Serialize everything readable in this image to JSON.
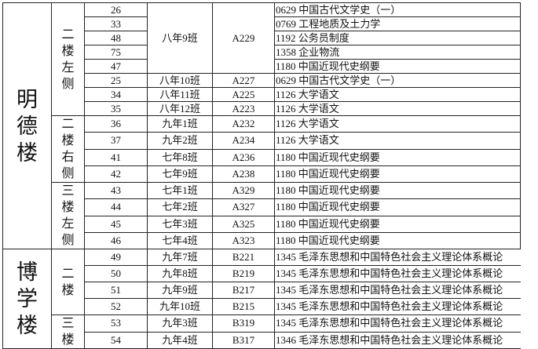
{
  "buildings": [
    {
      "name": "明德楼",
      "floors": [
        {
          "name": "二楼左侧",
          "rows": [
            {
              "seat": "26",
              "course": "0629 中国古代文学史（一）"
            },
            {
              "seat": "33",
              "course": "0769 工程地质及土力学"
            },
            {
              "seat": "48",
              "course": "1192 公务员制度"
            },
            {
              "seat": "75",
              "course": "1358 企业物流"
            },
            {
              "seat": "47",
              "course": "1180 中国近现代史纲要"
            },
            {
              "seat": "25",
              "class": "八年10班",
              "room": "A227",
              "course": "0629 中国古代文学史（一）"
            },
            {
              "seat": "34",
              "class": "八年11班",
              "room": "A225",
              "course": "1126 大学语文"
            },
            {
              "seat": "35",
              "class": "八年12班",
              "room": "A223",
              "course": "1126 大学语文"
            }
          ],
          "merged_class": "八年9班",
          "merged_room": "A229"
        },
        {
          "name": "二楼右侧",
          "rows": [
            {
              "seat": "36",
              "class": "九年1班",
              "room": "A232",
              "course": "1126 大学语文"
            },
            {
              "seat": "37",
              "class": "九年2班",
              "room": "A234",
              "course": "1126 大学语文"
            },
            {
              "seat": "41",
              "class": "七年8班",
              "room": "A236",
              "course": "1180 中国近现代史纲要"
            },
            {
              "seat": "42",
              "class": "七年9班",
              "room": "A238",
              "course": "1180 中国近现代史纲要"
            }
          ]
        },
        {
          "name": "三楼左侧",
          "rows": [
            {
              "seat": "43",
              "class": "七年1班",
              "room": "A329",
              "course": "1180 中国近现代史纲要"
            },
            {
              "seat": "44",
              "class": "七年2班",
              "room": "A327",
              "course": "1180 中国近现代史纲要"
            },
            {
              "seat": "45",
              "class": "七年3班",
              "room": "A325",
              "course": "1180 中国近现代史纲要"
            },
            {
              "seat": "46",
              "class": "七年4班",
              "room": "A323",
              "course": "1180 中国近现代史纲要"
            }
          ]
        }
      ]
    },
    {
      "name": "博学楼",
      "floors": [
        {
          "name": "二楼",
          "rows": [
            {
              "seat": "49",
              "class": "九年7班",
              "room": "B221",
              "course": "1345 毛泽东思想和中国特色社会主义理论体系概论"
            },
            {
              "seat": "50",
              "class": "九年8班",
              "room": "B219",
              "course": "1345 毛泽东思想和中国特色社会主义理论体系概论"
            },
            {
              "seat": "51",
              "class": "九年9班",
              "room": "B217",
              "course": "1345 毛泽东思想和中国特色社会主义理论体系概论"
            },
            {
              "seat": "52",
              "class": "九年10班",
              "room": "B215",
              "course": "1345 毛泽东思想和中国特色社会主义理论体系概论"
            }
          ]
        },
        {
          "name": "三楼",
          "rows": [
            {
              "seat": "53",
              "class": "九年3班",
              "room": "B319",
              "course": "1345 毛泽东思想和中国特色社会主义理论体系概论"
            },
            {
              "seat": "54",
              "class": "九年4班",
              "room": "B317",
              "course": "1346 毛泽东思想和中国特色社会主义理论体系概论"
            }
          ]
        }
      ]
    }
  ]
}
